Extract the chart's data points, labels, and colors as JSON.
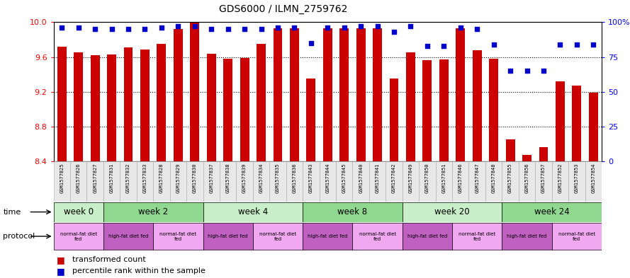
{
  "title": "GDS6000 / ILMN_2759762",
  "samples": [
    "GSM1577825",
    "GSM1577826",
    "GSM1577827",
    "GSM1577831",
    "GSM1577832",
    "GSM1577833",
    "GSM1577828",
    "GSM1577829",
    "GSM1577830",
    "GSM1577837",
    "GSM1577838",
    "GSM1577839",
    "GSM1577834",
    "GSM1577835",
    "GSM1577836",
    "GSM1577843",
    "GSM1577844",
    "GSM1577845",
    "GSM1577840",
    "GSM1577841",
    "GSM1577842",
    "GSM1577849",
    "GSM1577850",
    "GSM1577851",
    "GSM1577846",
    "GSM1577847",
    "GSM1577848",
    "GSM1577855",
    "GSM1577856",
    "GSM1577857",
    "GSM1577852",
    "GSM1577853",
    "GSM1577854"
  ],
  "bar_values": [
    9.72,
    9.65,
    9.62,
    9.63,
    9.71,
    9.69,
    9.75,
    9.92,
    10.0,
    9.64,
    9.58,
    9.59,
    9.75,
    9.93,
    9.93,
    9.35,
    9.93,
    9.93,
    9.93,
    9.93,
    9.35,
    9.65,
    9.56,
    9.57,
    9.93,
    9.68,
    9.58,
    8.65,
    8.47,
    8.56,
    9.32,
    9.27,
    9.19
  ],
  "percentile_values": [
    96,
    96,
    95,
    95,
    95,
    95,
    96,
    97,
    97,
    95,
    95,
    95,
    95,
    96,
    96,
    85,
    96,
    96,
    97,
    97,
    93,
    97,
    83,
    83,
    96,
    95,
    84,
    65,
    65,
    65,
    84,
    84,
    84
  ],
  "ymin": 8.4,
  "ymax": 10.0,
  "yticks_left": [
    8.4,
    8.8,
    9.2,
    9.6,
    10.0
  ],
  "yticks_right": [
    0,
    25,
    50,
    75,
    100
  ],
  "bar_color": "#cc0000",
  "dot_color": "#0000cc",
  "time_groups": [
    {
      "label": "week 0",
      "start": 0,
      "end": 3,
      "color": "#c8efc8"
    },
    {
      "label": "week 2",
      "start": 3,
      "end": 9,
      "color": "#90d890"
    },
    {
      "label": "week 4",
      "start": 9,
      "end": 15,
      "color": "#c8efc8"
    },
    {
      "label": "week 8",
      "start": 15,
      "end": 21,
      "color": "#90d890"
    },
    {
      "label": "week 20",
      "start": 21,
      "end": 27,
      "color": "#c8efc8"
    },
    {
      "label": "week 24",
      "start": 27,
      "end": 33,
      "color": "#90d890"
    }
  ],
  "protocol_groups": [
    {
      "label": "normal-fat diet\nfed",
      "start": 0,
      "end": 3,
      "color": "#f0a8f0"
    },
    {
      "label": "high-fat diet fed",
      "start": 3,
      "end": 6,
      "color": "#c060c0"
    },
    {
      "label": "normal-fat diet\nfed",
      "start": 6,
      "end": 9,
      "color": "#f0a8f0"
    },
    {
      "label": "high-fat diet fed",
      "start": 9,
      "end": 12,
      "color": "#c060c0"
    },
    {
      "label": "normal-fat diet\nfed",
      "start": 12,
      "end": 15,
      "color": "#f0a8f0"
    },
    {
      "label": "high-fat diet fed",
      "start": 15,
      "end": 18,
      "color": "#c060c0"
    },
    {
      "label": "normal-fat diet\nfed",
      "start": 18,
      "end": 21,
      "color": "#f0a8f0"
    },
    {
      "label": "high-fat diet fed",
      "start": 21,
      "end": 24,
      "color": "#c060c0"
    },
    {
      "label": "normal-fat diet\nfed",
      "start": 24,
      "end": 27,
      "color": "#f0a8f0"
    },
    {
      "label": "high-fat diet fed",
      "start": 27,
      "end": 30,
      "color": "#c060c0"
    },
    {
      "label": "normal-fat diet\nfed",
      "start": 30,
      "end": 33,
      "color": "#f0a8f0"
    }
  ],
  "legend_bar_label": "transformed count",
  "legend_dot_label": "percentile rank within the sample"
}
